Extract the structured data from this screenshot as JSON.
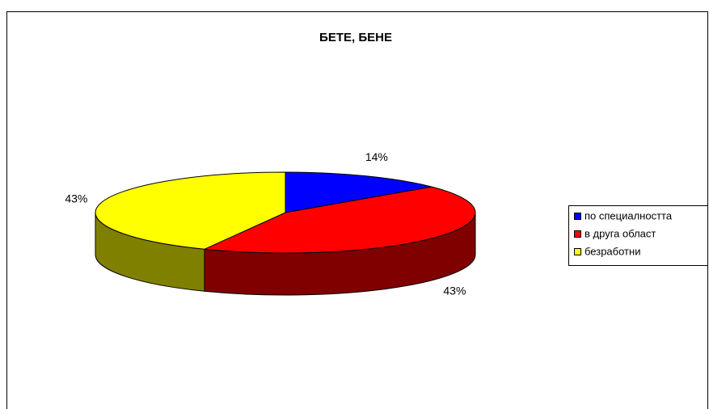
{
  "chart_data": {
    "type": "pie3d",
    "title": "БЕТЕ, БЕНЕ",
    "categories": [
      "по специалността",
      "в друга област",
      "безработни"
    ],
    "values": [
      14,
      43,
      43
    ],
    "value_labels": [
      "14%",
      "43%",
      "43%"
    ],
    "colors": [
      "#0000ff",
      "#ff0000",
      "#ffff00"
    ],
    "side_colors": [
      "#000080",
      "#800000",
      "#808000"
    ],
    "legend": "right"
  }
}
